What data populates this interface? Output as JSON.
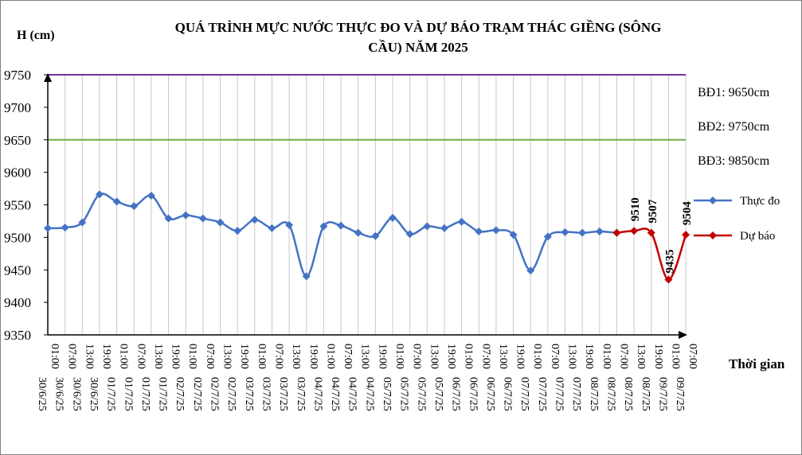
{
  "chart_data": {
    "type": "line",
    "title_line1": "QUÁ TRÌNH  MỰC NƯỚC THỰC ĐO VÀ DỰ BÁO TRẠM THÁC  GIỀNG (SÔNG",
    "title_line2": "CẦU) NĂM 2025",
    "ylabel": "H (cm)",
    "xlabel": "Thời gian",
    "ylim": [
      9350,
      9750
    ],
    "yticks": [
      "9350",
      "9400",
      "9450",
      "9500",
      "9550",
      "9600",
      "9650",
      "9700",
      "9750"
    ],
    "categories": [
      "01:00 30/6/25",
      "07:00 30/6/25",
      "13:00 30/6/25",
      "19:00 30/6/25",
      "01:00 01/7/25",
      "07:00 01/7/25",
      "13:00 01/7/25",
      "19:00 01/7/25",
      "01:00 02/7/25",
      "07:00 02/7/25",
      "13:00 02/7/25",
      "19:00 02/7/25",
      "01:00 03/7/25",
      "07:00 03/7/25",
      "13:00 03/7/25",
      "19:00 03/7/25",
      "01:00 04/7/25",
      "07:00 04/7/25",
      "13:00 04/7/25",
      "19:00 04/7/25",
      "01:00 05/7/25",
      "07:00 05/7/25",
      "13:00 05/7/25",
      "19:00 05/7/25",
      "01:00 06/7/25",
      "07:00 06/7/25",
      "13:00 06/7/25",
      "19:00 06/7/25",
      "01:00 07/7/25",
      "07:00 07/7/25",
      "13:00 07/7/25",
      "19:00 07/7/25",
      "01:00 08/7/25",
      "07:00 08/7/25",
      "13:00 08/7/25",
      "19:00 08/7/25",
      "01:00 09/7/25",
      "07:00 09/7/25"
    ],
    "series": [
      {
        "name": "Thực đo",
        "color": "#4472c4",
        "points": [
          [
            0,
            9514
          ],
          [
            1,
            9515
          ],
          [
            2,
            9523
          ],
          [
            3,
            9566
          ],
          [
            4,
            9555
          ],
          [
            5,
            9548
          ],
          [
            6,
            9564
          ],
          [
            7,
            9529
          ],
          [
            8,
            9534
          ],
          [
            9,
            9529
          ],
          [
            10,
            9523
          ],
          [
            11,
            9510
          ],
          [
            12,
            9527
          ],
          [
            13,
            9514
          ],
          [
            14,
            9519
          ],
          [
            15,
            9440
          ],
          [
            16,
            9517
          ],
          [
            17,
            9518
          ],
          [
            18,
            9507
          ],
          [
            19,
            9502
          ],
          [
            20,
            9530
          ],
          [
            21,
            9505
          ],
          [
            22,
            9517
          ],
          [
            23,
            9514
          ],
          [
            24,
            9524
          ],
          [
            25,
            9509
          ],
          [
            26,
            9511
          ],
          [
            27,
            9504
          ],
          [
            28,
            9449
          ],
          [
            29,
            9501
          ],
          [
            30,
            9508
          ],
          [
            31,
            9507
          ],
          [
            32,
            9509
          ],
          [
            33,
            9507
          ]
        ]
      },
      {
        "name": "Dự báo",
        "color": "#c00000",
        "points": [
          [
            33,
            9507
          ],
          [
            34,
            9510
          ],
          [
            35,
            9507
          ],
          [
            36,
            9435
          ],
          [
            37,
            9504
          ]
        ]
      }
    ],
    "reference_lines": [
      {
        "label": "BĐ1: 9650cm",
        "value": 9650,
        "color": "#70ad47"
      },
      {
        "label": "BĐ2: 9750cm",
        "value": 9750,
        "color": "#7030a0"
      },
      {
        "label": "BĐ3: 9850cm"
      }
    ],
    "data_labels": [
      {
        "index": 34,
        "value": 9510,
        "text": "9510"
      },
      {
        "index": 35,
        "value": 9507,
        "text": "9507"
      },
      {
        "index": 36,
        "value": 9435,
        "text": "9435"
      },
      {
        "index": 37,
        "value": 9504,
        "text": "9504"
      }
    ],
    "grid": "vertical"
  }
}
